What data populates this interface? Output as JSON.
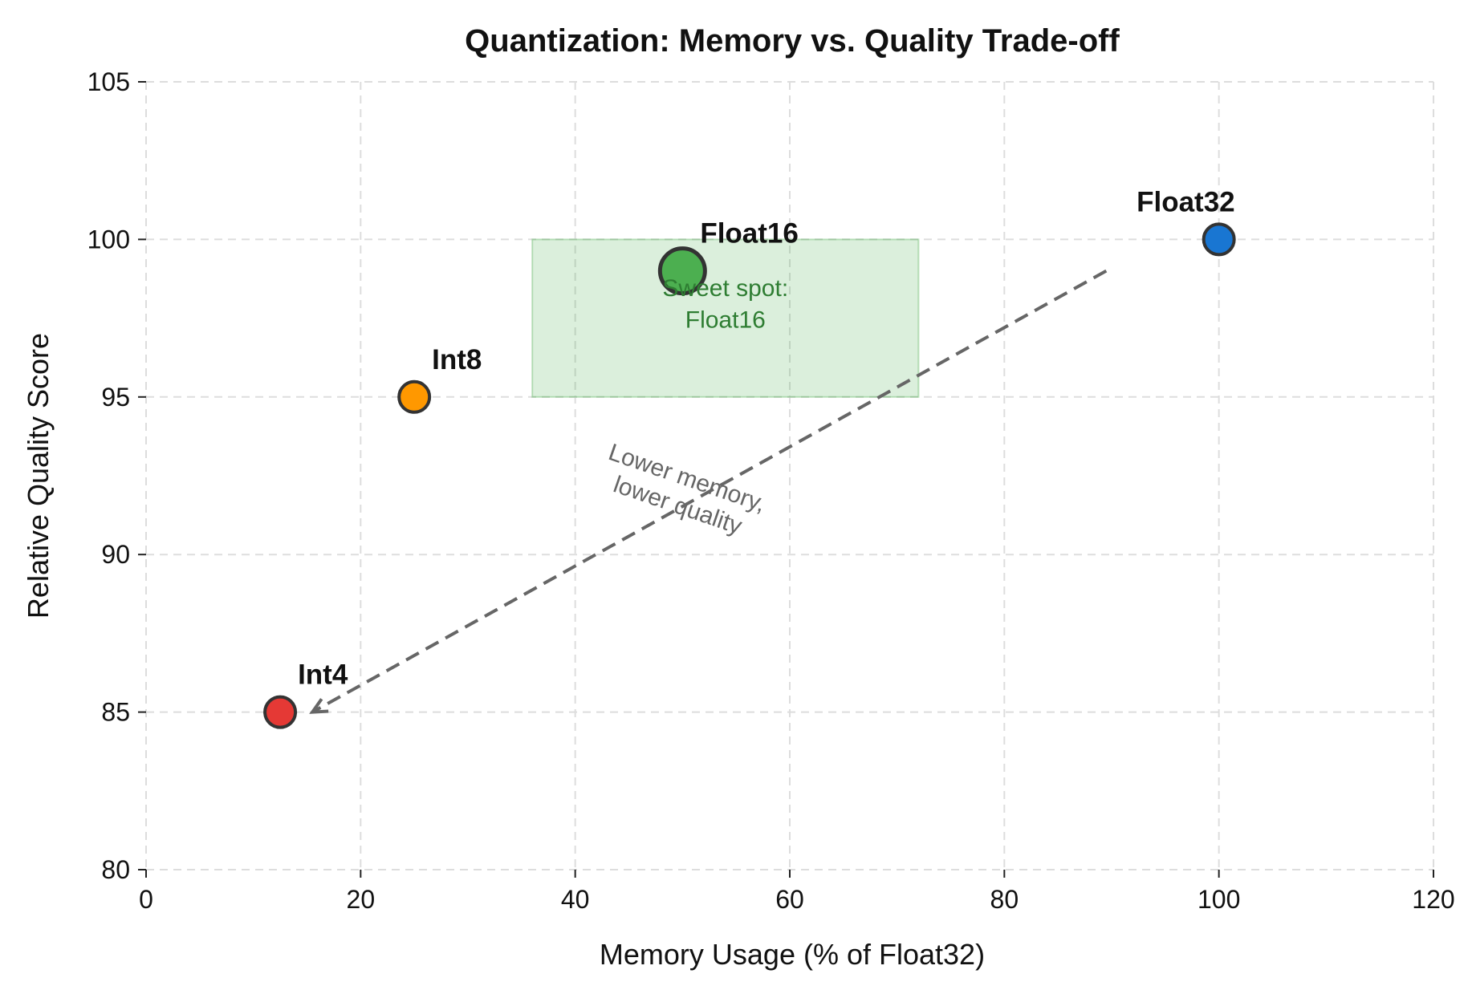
{
  "chart_data": {
    "type": "scatter",
    "title": "Quantization: Memory vs. Quality Trade-off",
    "xlabel": "Memory Usage (% of Float32)",
    "ylabel": "Relative Quality Score",
    "xlim": [
      0,
      120
    ],
    "ylim": [
      80,
      105
    ],
    "xticks": [
      "0",
      "20",
      "40",
      "60",
      "80",
      "100",
      "120"
    ],
    "yticks": [
      "80",
      "85",
      "90",
      "95",
      "100",
      "105"
    ],
    "grid": true,
    "points": [
      {
        "label": "Float32",
        "x": 100,
        "y": 100,
        "color": "#1976d2",
        "emphasis": false
      },
      {
        "label": "Float16",
        "x": 50,
        "y": 99,
        "color": "#4caf50",
        "emphasis": true
      },
      {
        "label": "Int8",
        "x": 25,
        "y": 95,
        "color": "#ff9800",
        "emphasis": false
      },
      {
        "label": "Int4",
        "x": 12.5,
        "y": 85,
        "color": "#e53935",
        "emphasis": false
      }
    ],
    "highlight_region": {
      "x": [
        36,
        72
      ],
      "y": [
        95,
        100
      ],
      "color": "#4caf50",
      "label_line1": "Sweet spot:",
      "label_line2": "Float16"
    },
    "trend_arrow": {
      "from": [
        89.5,
        99
      ],
      "to": [
        15.5,
        85
      ],
      "color": "#666666",
      "label_line1": "Lower memory,",
      "label_line2": "lower quality"
    }
  }
}
